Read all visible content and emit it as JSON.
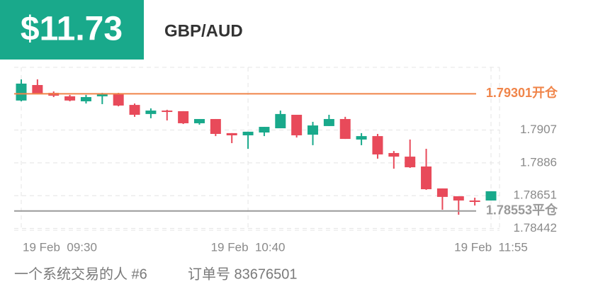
{
  "header": {
    "price": "$11.73",
    "pair": "GBP/AUD"
  },
  "chart_data": {
    "type": "candlestick",
    "categories": [
      "19 Feb  09:30",
      null,
      null,
      null,
      null,
      null,
      null,
      null,
      null,
      null,
      null,
      null,
      null,
      null,
      "19 Feb  10:40",
      null,
      null,
      null,
      null,
      null,
      null,
      null,
      null,
      null,
      null,
      null,
      null,
      null,
      null,
      "19 Feb  11:55"
    ],
    "open": [
      1.79258,
      1.79357,
      1.79307,
      1.79285,
      1.79253,
      1.79285,
      1.79298,
      1.7923,
      1.79172,
      1.79194,
      1.7919,
      1.79113,
      1.7914,
      1.7905,
      1.79036,
      1.79054,
      1.79081,
      1.79167,
      1.7904,
      1.79095,
      1.7914,
      1.79009,
      1.79031,
      1.78923,
      1.789,
      1.78837,
      1.78697,
      1.78647,
      1.7862,
      1.7862
    ],
    "high": [
      1.79393,
      1.79393,
      1.79316,
      1.79294,
      1.79294,
      1.79307,
      1.79307,
      1.79239,
      1.79208,
      1.79199,
      1.7919,
      1.7914,
      1.7914,
      1.7905,
      1.79059,
      1.7909,
      1.79194,
      1.79167,
      1.79122,
      1.79167,
      1.79154,
      1.7905,
      1.79045,
      1.78936,
      1.79009,
      1.7895,
      1.78697,
      1.78647,
      1.78638,
      1.78679
    ],
    "low": [
      1.79253,
      1.79298,
      1.7928,
      1.79253,
      1.79239,
      1.79235,
      1.79221,
      1.79154,
      1.79145,
      1.79131,
      1.79108,
      1.79104,
      1.79031,
      1.78986,
      1.7895,
      1.79031,
      1.79081,
      1.79022,
      1.78973,
      1.79095,
      1.79013,
      1.78973,
      1.78887,
      1.78823,
      1.78828,
      1.78688,
      1.78561,
      1.78529,
      1.78588,
      1.7862
    ],
    "close": [
      1.79366,
      1.79298,
      1.79289,
      1.79258,
      1.7928,
      1.79298,
      1.79226,
      1.79167,
      1.79194,
      1.79185,
      1.79113,
      1.7914,
      1.79045,
      1.79036,
      1.79059,
      1.7909,
      1.79172,
      1.79036,
      1.79099,
      1.7914,
      1.79013,
      1.79031,
      1.78914,
      1.789,
      1.78832,
      1.78692,
      1.78643,
      1.7862,
      1.78611,
      1.78679
    ],
    "up_color": "#19a98b",
    "down_color": "#e84a5a",
    "ylim": [
      1.7843,
      1.7947
    ],
    "yticks": [
      1.7907,
      1.7886,
      1.78651,
      1.78442
    ],
    "reference_lines": [
      {
        "value": 1.79301,
        "label": "1.79301开仓",
        "color": "#f0854a"
      },
      {
        "value": 1.78553,
        "label": "1.78553平仓",
        "color": "#9a9a9a"
      }
    ],
    "grid": true
  },
  "footer": {
    "strategy": "一个系统交易的人 #6",
    "order": "订单号 83676501"
  }
}
